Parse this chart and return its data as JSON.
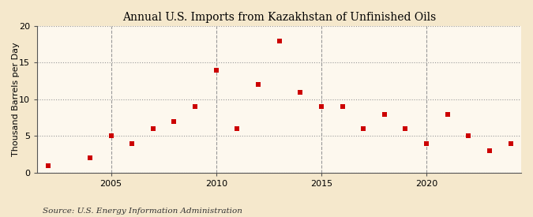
{
  "title": "Annual U.S. Imports from Kazakhstan of Unfinished Oils",
  "ylabel": "Thousand Barrels per Day",
  "source": "Source: U.S. Energy Information Administration",
  "fig_background_color": "#f5e8cc",
  "plot_background_color": "#fdf8ee",
  "years": [
    2002,
    2004,
    2005,
    2006,
    2007,
    2008,
    2009,
    2010,
    2011,
    2012,
    2013,
    2014,
    2015,
    2016,
    2017,
    2018,
    2019,
    2020,
    2021,
    2022,
    2023,
    2024
  ],
  "values": [
    1,
    2,
    5,
    4,
    6,
    7,
    9,
    14,
    6,
    12,
    18,
    11,
    9,
    9,
    6,
    8,
    6,
    4,
    8,
    5,
    3,
    4
  ],
  "marker_color": "#cc0000",
  "marker_size": 18,
  "ylim": [
    0,
    20
  ],
  "yticks": [
    0,
    5,
    10,
    15,
    20
  ],
  "xlim": [
    2001.5,
    2024.5
  ],
  "xticks": [
    2005,
    2010,
    2015,
    2020
  ],
  "hgrid_color": "#999999",
  "vgrid_color": "#999999",
  "hgrid_style": ":",
  "vgrid_style": "--",
  "title_fontsize": 10,
  "ylabel_fontsize": 8,
  "tick_fontsize": 8,
  "source_fontsize": 7.5
}
